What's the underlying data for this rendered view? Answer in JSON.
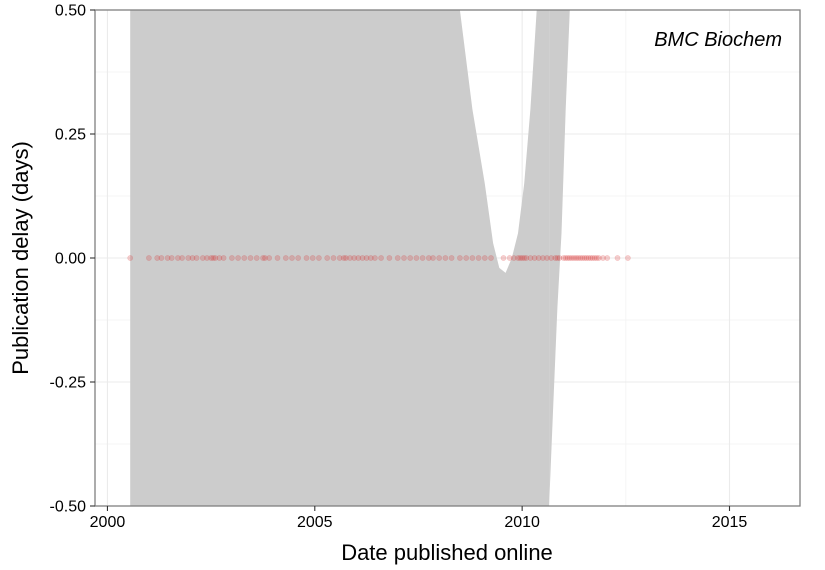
{
  "chart_data": {
    "type": "scatter",
    "title": "",
    "annotation": "BMC Biochem",
    "xlabel": "Date published online",
    "ylabel": "Publication delay (days)",
    "xlim": [
      1999.7,
      2016.7
    ],
    "ylim": [
      -0.5,
      0.5
    ],
    "x_ticks": [
      2000,
      2005,
      2010,
      2015
    ],
    "x_tick_labels": [
      "2000",
      "2005",
      "2010",
      "2015"
    ],
    "y_ticks": [
      -0.5,
      -0.25,
      0,
      0.25,
      0.5
    ],
    "y_tick_labels": [
      "-0.50",
      "-0.25",
      "0.00",
      "0.25",
      "0.50"
    ],
    "grid": true,
    "point_color": "#d62728",
    "band_color": "#cccccc",
    "points": {
      "y": 0,
      "x": [
        2000.55,
        2001.0,
        2001.2,
        2001.3,
        2001.45,
        2001.55,
        2001.7,
        2001.8,
        2001.95,
        2002.05,
        2002.15,
        2002.3,
        2002.4,
        2002.5,
        2002.55,
        2002.6,
        2002.7,
        2002.8,
        2003.0,
        2003.15,
        2003.3,
        2003.45,
        2003.6,
        2003.75,
        2003.8,
        2003.9,
        2004.1,
        2004.3,
        2004.45,
        2004.6,
        2004.8,
        2004.95,
        2005.1,
        2005.3,
        2005.45,
        2005.6,
        2005.7,
        2005.75,
        2005.85,
        2005.95,
        2006.05,
        2006.15,
        2006.25,
        2006.35,
        2006.45,
        2006.6,
        2006.8,
        2007.0,
        2007.15,
        2007.3,
        2007.45,
        2007.6,
        2007.75,
        2007.85,
        2008.0,
        2008.15,
        2008.3,
        2008.5,
        2008.65,
        2008.8,
        2008.95,
        2009.1,
        2009.25,
        2009.55,
        2009.7,
        2009.8,
        2009.9,
        2009.95,
        2010.0,
        2010.05,
        2010.1,
        2010.2,
        2010.3,
        2010.4,
        2010.5,
        2010.6,
        2010.7,
        2010.8,
        2010.85,
        2010.9,
        2011.0,
        2011.05,
        2011.1,
        2011.15,
        2011.2,
        2011.25,
        2011.3,
        2011.35,
        2011.4,
        2011.45,
        2011.5,
        2011.55,
        2011.6,
        2011.65,
        2011.7,
        2011.75,
        2011.8,
        2011.85,
        2011.95,
        2012.05,
        2012.3,
        2012.55
      ]
    },
    "confidence_band": {
      "segments": [
        {
          "x": [
            2000.55,
            2008.5,
            2008.8,
            2009.1,
            2009.3,
            2009.45,
            2009.6,
            2009.75,
            2009.9,
            2010.05,
            2010.2,
            2010.35,
            2010.45,
            2010.55,
            2010.65
          ],
          "upper": [
            0.5,
            0.5,
            0.3,
            0.15,
            0.03,
            -0.02,
            -0.03,
            0.0,
            0.05,
            0.15,
            0.3,
            0.5,
            0.5,
            0.5,
            0.5
          ],
          "lower": [
            -0.5,
            -0.5,
            -0.5,
            -0.5,
            -0.5,
            -0.5,
            -0.5,
            -0.5,
            -0.5,
            -0.5,
            -0.5,
            -0.5,
            -0.5,
            -0.5,
            -0.5
          ]
        },
        {
          "x": [
            2010.65,
            2010.75,
            2010.85,
            2010.95,
            2011.05,
            2011.15
          ],
          "upper": [
            0.5,
            0.5,
            0.5,
            0.5,
            0.5,
            0.5
          ],
          "lower": [
            -0.5,
            -0.3,
            -0.1,
            0.05,
            0.3,
            0.5
          ]
        }
      ]
    }
  }
}
